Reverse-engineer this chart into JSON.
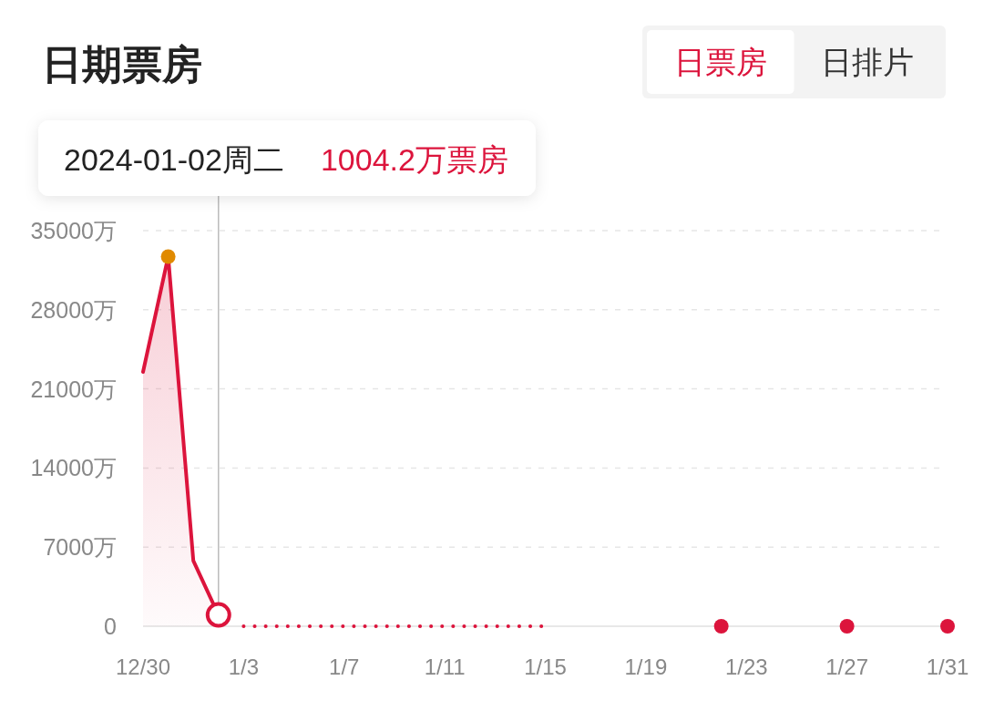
{
  "chart_data": {
    "type": "line",
    "title": "日期票房",
    "annotations": [
      "日票房",
      "日排片",
      "2024-01-02周二",
      "1004.2万票房"
    ],
    "series": [
      {
        "type": "area",
        "color": "#dc143c",
        "x": [
          "2023-12-30",
          "2023-12-31",
          "2024-01-01",
          "2024-01-02"
        ],
        "values": [
          22500,
          32700,
          5800,
          1004.2
        ]
      },
      {
        "line_style": "dotted",
        "color": "#dc143c",
        "x": [
          "2024-01-03",
          "2024-01-04",
          "2024-01-05",
          "2024-01-06",
          "2024-01-07",
          "2024-01-08",
          "2024-01-09",
          "2024-01-10",
          "2024-01-11",
          "2024-01-12",
          "2024-01-13",
          "2024-01-14",
          "2024-01-15"
        ],
        "values": [
          0,
          0,
          0,
          0,
          0,
          0,
          0,
          0,
          0,
          0,
          0,
          0,
          0
        ]
      },
      {
        "type": "scatter",
        "marker": "circle",
        "color": "#dc143c",
        "x": [
          "2024-01-22",
          "2024-01-27",
          "2024-01-31"
        ],
        "values": [
          0,
          0,
          0
        ]
      },
      {
        "type": "scatter",
        "marker": "circle",
        "color": "#e08a00",
        "x": [
          "2023-12-31"
        ],
        "values": [
          32700
        ]
      }
    ],
    "xlim": [
      "2023-12-30",
      "2024-01-31"
    ],
    "xticks": [
      {
        "value": "2023-12-30",
        "label": "12/30"
      },
      {
        "value": "2024-01-03",
        "label": "1/3"
      },
      {
        "value": "2024-01-07",
        "label": "1/7"
      },
      {
        "value": "2024-01-11",
        "label": "1/11"
      },
      {
        "value": "2024-01-15",
        "label": "1/15"
      },
      {
        "value": "2024-01-19",
        "label": "1/19"
      },
      {
        "value": "2024-01-23",
        "label": "1/23"
      },
      {
        "value": "2024-01-27",
        "label": "1/27"
      },
      {
        "value": "2024-01-31",
        "label": "1/31"
      }
    ],
    "ylim": [
      0,
      35000
    ],
    "yticks": [
      0,
      {
        "value": 7000,
        "label": "7000万"
      },
      {
        "value": 14000,
        "label": "14000万"
      },
      {
        "value": 21000,
        "label": "21000万"
      },
      {
        "value": 28000,
        "label": "28000万"
      },
      {
        "value": 35000,
        "label": "35000万"
      }
    ],
    "grid": "y",
    "ref_lines": [
      {
        "axis": "x",
        "value": "2024-01-02",
        "color": "#bbbbbb"
      }
    ]
  }
}
